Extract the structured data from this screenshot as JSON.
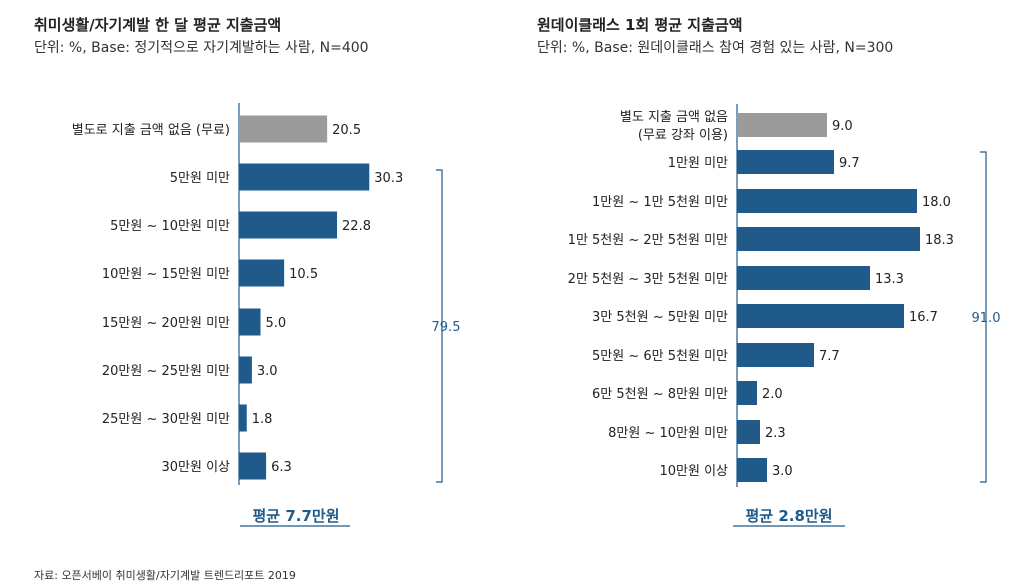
{
  "chart_data": [
    {
      "type": "bar",
      "orientation": "horizontal",
      "title": "취미생활/자기계발 한 달 평균 지출금액",
      "subtitle": "단위: %, Base: 정기적으로 자기계발하는 사람, N=400",
      "categories": [
        "별도로 지출 금액 없음 (무료)",
        "5만원 미만",
        "5만원 ~ 10만원 미만",
        "10만원 ~ 15만원 미만",
        "15만원 ~ 20만원 미만",
        "20만원 ~ 25만원 미만",
        "25만원 ~ 30만원 미만",
        "30만원 이상"
      ],
      "values": [
        20.5,
        30.3,
        22.8,
        10.5,
        5.0,
        3.0,
        1.8,
        6.3
      ],
      "value_labels": [
        "20.5",
        "30.3",
        "22.8",
        "10.5",
        "5.0",
        "3.0",
        "1.8",
        "6.3"
      ],
      "bar_colors": [
        "#9b9b9b",
        "#1f5a8b",
        "#1f5a8b",
        "#1f5a8b",
        "#1f5a8b",
        "#1f5a8b",
        "#1f5a8b",
        "#1f5a8b"
      ],
      "bracket_label": "79.5",
      "average_label": "평균 7.7만원"
    },
    {
      "type": "bar",
      "orientation": "horizontal",
      "title": "원데이클래스 1회 평균 지출금액",
      "subtitle": "단위: %, Base: 원데이클래스 참여 경험 있는 사람, N=300",
      "categories": [
        [
          "별도 지출 금액 없음",
          "(무료 강좌 이용)"
        ],
        "1만원 미만",
        "1만원 ~ 1만 5천원 미만",
        "1만 5천원 ~ 2만 5천원 미만",
        "2만 5천원 ~ 3만 5천원 미만",
        "3만 5천원 ~ 5만원 미만",
        "5만원 ~ 6만 5천원 미만",
        "6만 5천원 ~ 8만원 미만",
        "8만원 ~ 10만원 미만",
        "10만원 이상"
      ],
      "values": [
        9.0,
        9.7,
        18.0,
        18.3,
        13.3,
        16.7,
        7.7,
        2.0,
        2.3,
        3.0
      ],
      "value_labels": [
        "9.0",
        "9.7",
        "18.0",
        "18.3",
        "13.3",
        "16.7",
        "7.7",
        "2.0",
        "2.3",
        "3.0"
      ],
      "bar_colors": [
        "#9b9b9b",
        "#1f5a8b",
        "#1f5a8b",
        "#1f5a8b",
        "#1f5a8b",
        "#1f5a8b",
        "#1f5a8b",
        "#1f5a8b",
        "#1f5a8b",
        "#1f5a8b"
      ],
      "bracket_label": "91.0",
      "average_label": "평균 2.8만원"
    }
  ],
  "colors": {
    "accent": "#1f5a8b",
    "neutral": "#9b9b9b",
    "axis": "#1f5a8b"
  },
  "source": "자료: 오픈서베이 취미생활/자기계발 트렌드리포트 2019"
}
